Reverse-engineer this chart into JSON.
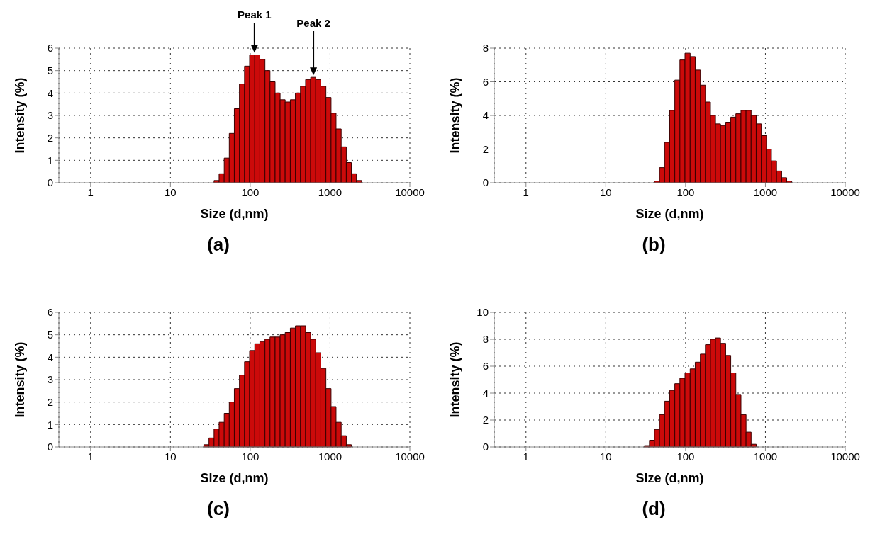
{
  "chart_data": [
    {
      "type": "histogram",
      "title": "(a)",
      "xlabel": "Size (d,nm)",
      "ylabel": "Intensity (%)",
      "log": "x",
      "grid": true,
      "color": "#cc0a0a",
      "bins": [
        35.2,
        40.7,
        47.2,
        54.6,
        63.2,
        73.2,
        84.8,
        98.2,
        114,
        132,
        153,
        177,
        205,
        237,
        274,
        318,
        368,
        426,
        494,
        572,
        662,
        767,
        888,
        1030,
        1190,
        1380,
        1600,
        1850,
        2140,
        2480
      ],
      "values": [
        0.1,
        0.4,
        1.1,
        2.2,
        3.3,
        4.4,
        5.2,
        5.7,
        5.7,
        5.5,
        5.0,
        4.5,
        4.0,
        3.7,
        3.6,
        3.7,
        4.0,
        4.3,
        4.6,
        4.7,
        4.6,
        4.3,
        3.8,
        3.1,
        2.4,
        1.6,
        0.9,
        0.4,
        0.1
      ],
      "xlim": [
        0.4,
        10000
      ],
      "xticks": [
        1,
        10,
        100,
        1000,
        10000
      ],
      "ylim": [
        0,
        6
      ],
      "yticks": [
        0,
        1,
        2,
        3,
        4,
        5,
        6
      ],
      "annotations": [
        {
          "text": "Peak 1",
          "x": 113,
          "y": 5.7
        },
        {
          "text": "Peak 2",
          "x": 620,
          "y": 4.7
        }
      ]
    },
    {
      "type": "histogram",
      "title": "(b)",
      "xlabel": "Size (d,nm)",
      "ylabel": "Intensity (%)",
      "log": "x",
      "grid": true,
      "color": "#cc0a0a",
      "bins": [
        40.7,
        47.2,
        54.6,
        63.2,
        73.2,
        84.8,
        98.2,
        114,
        132,
        153,
        177,
        205,
        237,
        274,
        318,
        368,
        426,
        494,
        572,
        662,
        767,
        888,
        1030,
        1190,
        1380,
        1600,
        1850,
        2140
      ],
      "values": [
        0.1,
        0.9,
        2.4,
        4.3,
        6.1,
        7.3,
        7.7,
        7.5,
        6.7,
        5.8,
        4.8,
        4.0,
        3.5,
        3.4,
        3.6,
        3.9,
        4.1,
        4.3,
        4.3,
        4.0,
        3.5,
        2.8,
        2.0,
        1.3,
        0.7,
        0.3,
        0.1
      ],
      "xlim": [
        0.4,
        10000
      ],
      "xticks": [
        1,
        10,
        100,
        1000,
        10000
      ],
      "ylim": [
        0,
        8
      ],
      "yticks": [
        0,
        2,
        4,
        6,
        8
      ]
    },
    {
      "type": "histogram",
      "title": "(c)",
      "xlabel": "Size (d,nm)",
      "ylabel": "Intensity (%)",
      "log": "x",
      "grid": true,
      "color": "#cc0a0a",
      "bins": [
        26.2,
        30.4,
        35.2,
        40.7,
        47.2,
        54.6,
        63.2,
        73.2,
        84.8,
        98.2,
        114,
        132,
        153,
        177,
        205,
        237,
        274,
        318,
        368,
        426,
        494,
        572,
        662,
        767,
        888,
        1030,
        1190,
        1380,
        1600,
        1850
      ],
      "values": [
        0.1,
        0.4,
        0.8,
        1.1,
        1.5,
        2.0,
        2.6,
        3.2,
        3.8,
        4.3,
        4.6,
        4.7,
        4.8,
        4.9,
        4.9,
        5.0,
        5.1,
        5.3,
        5.4,
        5.4,
        5.1,
        4.8,
        4.2,
        3.5,
        2.6,
        1.8,
        1.1,
        0.5,
        0.1
      ],
      "xlim": [
        0.4,
        10000
      ],
      "xticks": [
        1,
        10,
        100,
        1000,
        10000
      ],
      "ylim": [
        0,
        6
      ],
      "yticks": [
        0,
        1,
        2,
        3,
        4,
        5,
        6
      ]
    },
    {
      "type": "histogram",
      "title": "(d)",
      "xlabel": "Size (d,nm)",
      "ylabel": "Intensity (%)",
      "log": "x",
      "grid": true,
      "color": "#cc0a0a",
      "bins": [
        30.4,
        35.2,
        40.7,
        47.2,
        54.6,
        63.2,
        73.2,
        84.8,
        98.2,
        114,
        132,
        153,
        177,
        205,
        237,
        274,
        318,
        368,
        426,
        494,
        572,
        662,
        767
      ],
      "values": [
        0.1,
        0.5,
        1.3,
        2.4,
        3.4,
        4.2,
        4.7,
        5.1,
        5.5,
        5.8,
        6.3,
        6.9,
        7.6,
        8.0,
        8.1,
        7.7,
        6.8,
        5.5,
        3.9,
        2.4,
        1.1,
        0.2
      ],
      "xlim": [
        0.4,
        10000
      ],
      "xticks": [
        1,
        10,
        100,
        1000,
        10000
      ],
      "ylim": [
        0,
        10
      ],
      "yticks": [
        0,
        2,
        4,
        6,
        8,
        10
      ]
    }
  ]
}
